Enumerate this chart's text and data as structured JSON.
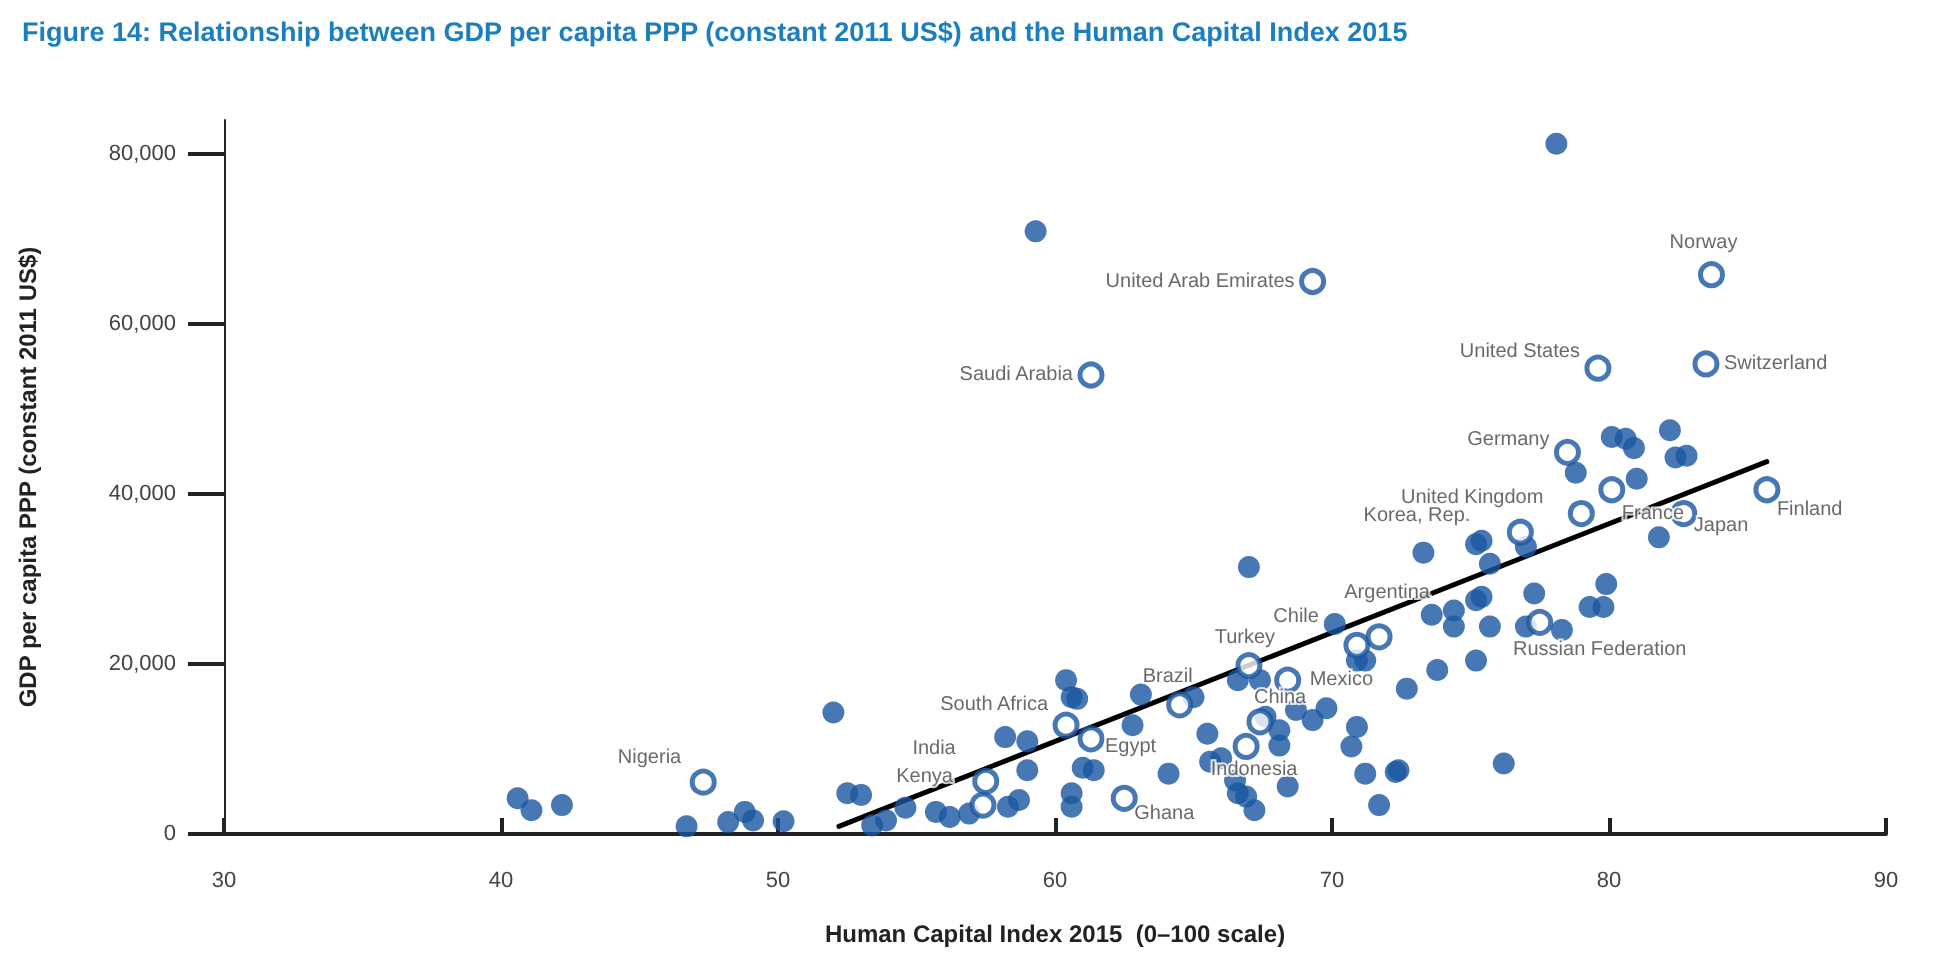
{
  "chart_data": {
    "type": "scatter",
    "title": "Figure 14: Relationship between GDP per capita PPP (constant 2011 US$) and the Human Capital Index 2015",
    "xlabel": "Human Capital Index 2015  (0–100 scale)",
    "ylabel": "GDP per capita PPP (constant 2011 US$)",
    "xlim": [
      30,
      90
    ],
    "xticks": [
      30,
      40,
      50,
      60,
      70,
      80,
      90
    ],
    "ylim": [
      0,
      84000
    ],
    "yticks": [
      {
        "value": 0,
        "label": "0"
      },
      {
        "value": 20000,
        "label": "20,000"
      },
      {
        "value": 40000,
        "label": "40,000"
      },
      {
        "value": 60000,
        "label": "60,000"
      },
      {
        "value": 80000,
        "label": "80,000"
      }
    ],
    "grid": false,
    "marker": "circle",
    "series": [
      {
        "color": "#1a56a0",
        "x": [
          40.6,
          41.1,
          42.2,
          46.7,
          48.2,
          48.8,
          49.1,
          50.2,
          52.0,
          52.5,
          53.0,
          53.4,
          53.9,
          54.6,
          55.7,
          56.2,
          56.9,
          58.2,
          59.0,
          59.0,
          58.7,
          58.3,
          60.4,
          60.6,
          60.6,
          60.6,
          59.3,
          78.1,
          60.8,
          63.1,
          62.8,
          61.0,
          61.4,
          64.1,
          65.0,
          65.5,
          65.6,
          66.0,
          66.5,
          66.6,
          66.9,
          67.2,
          67.0,
          66.6,
          67.4,
          67.6,
          68.1,
          68.1,
          68.4,
          68.7,
          69.3,
          69.8,
          70.1,
          70.9,
          71.2,
          70.9,
          70.7,
          71.2,
          71.7,
          72.4,
          72.7,
          73.3,
          73.6,
          74.4,
          74.4,
          73.8,
          75.2,
          75.2,
          75.2,
          75.4,
          75.7,
          77.0,
          75.7,
          75.4,
          77.0,
          77.3,
          78.3,
          79.3,
          79.8,
          79.9,
          72.3,
          76.2,
          78.8,
          80.1,
          80.6,
          80.9,
          81.0,
          82.2,
          82.4,
          82.8,
          81.8
        ],
        "values": [
          4200,
          2800,
          3400,
          900,
          1400,
          2600,
          1600,
          1500,
          14300,
          4800,
          4600,
          1000,
          1600,
          3100,
          2600,
          2000,
          2400,
          11400,
          10900,
          7500,
          4000,
          3200,
          18100,
          16100,
          4800,
          3200,
          70900,
          81200,
          15900,
          16400,
          12800,
          7800,
          7500,
          7100,
          16100,
          11800,
          8500,
          8900,
          6300,
          4800,
          4400,
          2800,
          31400,
          18100,
          18100,
          13800,
          12200,
          10400,
          5600,
          14600,
          13400,
          14800,
          24700,
          20400,
          20400,
          12600,
          10300,
          7100,
          3400,
          7500,
          17100,
          33100,
          25800,
          26300,
          24400,
          19300,
          20400,
          27500,
          34100,
          34500,
          31800,
          33800,
          24400,
          27900,
          24400,
          28300,
          24000,
          26700,
          26700,
          29400,
          7300,
          8300,
          42500,
          46700,
          46500,
          45400,
          41800,
          47500,
          44300,
          44500,
          34900
        ]
      },
      {
        "color": "#1a56a0",
        "x": [
          47.3,
          57.4,
          57.5,
          60.4,
          61.3,
          62.5,
          64.5,
          67.4,
          66.9,
          67.0,
          68.4,
          70.9,
          71.7,
          76.8,
          79.0,
          78.5,
          80.1,
          79.6,
          83.5,
          82.7,
          85.7,
          77.5,
          83.7,
          69.3,
          61.3
        ],
        "values": [
          6100,
          3400,
          6200,
          12800,
          11200,
          4200,
          15200,
          13200,
          10300,
          19800,
          18100,
          22200,
          23200,
          35500,
          37700,
          44900,
          40500,
          54800,
          55300,
          37700,
          40500,
          24900,
          65800,
          65000,
          54000
        ]
      },
      {
        "type": "line",
        "color": "#000000",
        "marker": "none",
        "x": [
          52.2,
          85.7
        ],
        "values": [
          900,
          43800
        ]
      }
    ],
    "annotations": [
      {
        "text": "Nigeria",
        "x": 47.3,
        "y": 6100
      },
      {
        "text": "Kenya",
        "x": 57.4,
        "y": 3400
      },
      {
        "text": "India",
        "x": 57.5,
        "y": 6200
      },
      {
        "text": "South Africa",
        "x": 60.4,
        "y": 12800
      },
      {
        "text": "Egypt",
        "x": 61.3,
        "y": 11200
      },
      {
        "text": "Ghana",
        "x": 62.5,
        "y": 4200
      },
      {
        "text": "Brazil",
        "x": 64.5,
        "y": 15200
      },
      {
        "text": "China",
        "x": 67.4,
        "y": 13200
      },
      {
        "text": "Indonesia",
        "x": 66.9,
        "y": 10300
      },
      {
        "text": "Turkey",
        "x": 67.0,
        "y": 19800
      },
      {
        "text": "Mexico",
        "x": 68.4,
        "y": 18100
      },
      {
        "text": "Chile",
        "x": 70.9,
        "y": 22200
      },
      {
        "text": "Argentina",
        "x": 71.7,
        "y": 23200
      },
      {
        "text": "Korea, Rep.",
        "x": 76.8,
        "y": 35500
      },
      {
        "text": "United Kingdom",
        "x": 79.0,
        "y": 37700
      },
      {
        "text": "Germany",
        "x": 78.5,
        "y": 44900
      },
      {
        "text": "France",
        "x": 80.1,
        "y": 40500
      },
      {
        "text": "United States",
        "x": 79.6,
        "y": 54800
      },
      {
        "text": "Switzerland",
        "x": 83.5,
        "y": 55300
      },
      {
        "text": "Japan",
        "x": 82.7,
        "y": 37700
      },
      {
        "text": "Finland",
        "x": 85.7,
        "y": 40500
      },
      {
        "text": "Russian Federation",
        "x": 77.5,
        "y": 24900
      },
      {
        "text": "Norway",
        "x": 83.7,
        "y": 65800
      },
      {
        "text": "United Arab Emirates",
        "x": 69.3,
        "y": 65000
      },
      {
        "text": "Saudi Arabia",
        "x": 61.3,
        "y": 54000
      }
    ]
  }
}
